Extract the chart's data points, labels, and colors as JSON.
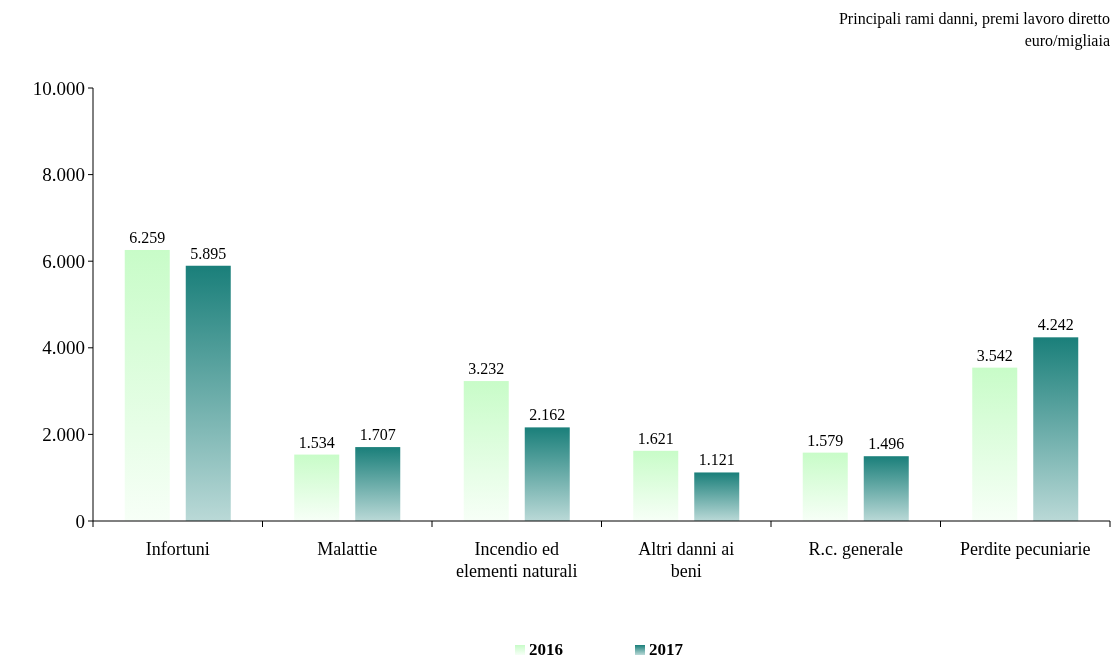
{
  "chart_data": {
    "type": "bar",
    "title": "Principali rami danni, premi lavoro diretto",
    "subtitle": "euro/migliaia",
    "categories": [
      "Infortuni",
      "Malattie",
      "Incendio ed elementi naturali",
      "Altri danni ai beni",
      "R.c. generale",
      "Perdite pecuniarie"
    ],
    "series": [
      {
        "name": "2016",
        "color": "#c8fcc8",
        "values": [
          6259,
          1534,
          3232,
          1621,
          1579,
          3542
        ],
        "value_labels": [
          "6.259",
          "1.534",
          "3.232",
          "1.621",
          "1.579",
          "3.542"
        ]
      },
      {
        "name": "2017",
        "color": "#1a7f7a",
        "values": [
          5895,
          1707,
          2162,
          1121,
          1496,
          4242
        ],
        "value_labels": [
          "5.895",
          "1.707",
          "2.162",
          "1.121",
          "1.496",
          "4.242"
        ]
      }
    ],
    "ylim": [
      0,
      10000
    ],
    "yticks": [
      0,
      {
        "value": 2000,
        "label": "2.000"
      },
      {
        "value": 4000,
        "label": "4.000"
      },
      {
        "value": 6000,
        "label": "6.000"
      },
      {
        "value": 8000,
        "label": "8.000"
      },
      {
        "value": 10000,
        "label": "10.000"
      }
    ],
    "grid": false,
    "legend": "bottom"
  }
}
